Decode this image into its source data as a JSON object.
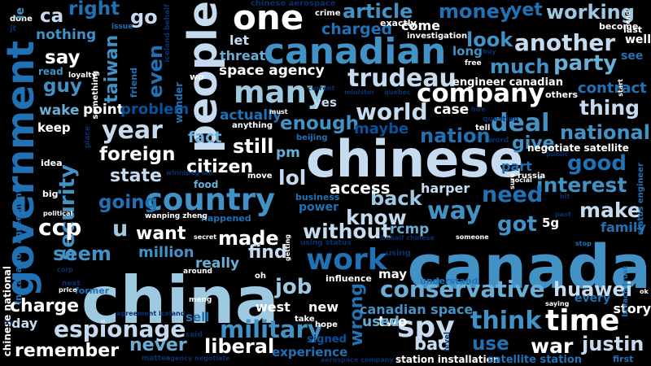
{
  "palette": {
    "background": "#000000",
    "white": "#ffffff",
    "pale": "#c6dbef",
    "light": "#9ecae1",
    "mid": "#6baed6",
    "blue": "#4292c6",
    "deep": "#2171b5",
    "dark": "#08519c",
    "navy": "#08306b"
  },
  "words": [
    {
      "text": "china",
      "color": "light"
    },
    {
      "text": "canada",
      "color": "blue"
    },
    {
      "text": "chinese",
      "color": "pale"
    },
    {
      "text": "canadian",
      "color": "blue"
    },
    {
      "text": "one",
      "color": "white"
    },
    {
      "text": "people",
      "color": "pale"
    },
    {
      "text": "government",
      "color": "deep"
    },
    {
      "text": "country",
      "color": "blue"
    },
    {
      "text": "many",
      "color": "light"
    },
    {
      "text": "time",
      "color": "white"
    },
    {
      "text": "trudeau",
      "color": "pale"
    },
    {
      "text": "company",
      "color": "white"
    },
    {
      "text": "year",
      "color": "pale"
    },
    {
      "text": "work",
      "color": "deep"
    },
    {
      "text": "huawei",
      "color": "pale"
    },
    {
      "text": "spy",
      "color": "pale"
    },
    {
      "text": "military",
      "color": "blue"
    },
    {
      "text": "espionage",
      "color": "pale"
    },
    {
      "text": "conservative",
      "color": "mid"
    },
    {
      "text": "think",
      "color": "blue"
    },
    {
      "text": "job",
      "color": "light"
    },
    {
      "text": "security",
      "color": "blue"
    },
    {
      "text": "another",
      "color": "pale"
    },
    {
      "text": "party",
      "color": "mid"
    },
    {
      "text": "world",
      "color": "pale"
    },
    {
      "text": "article",
      "color": "blue"
    },
    {
      "text": "money",
      "color": "deep"
    },
    {
      "text": "yet",
      "color": "deep"
    },
    {
      "text": "working",
      "color": "light"
    },
    {
      "text": "go",
      "color": "pale"
    },
    {
      "text": "right",
      "color": "deep"
    },
    {
      "text": "ca",
      "color": "pale"
    },
    {
      "text": "nothing",
      "color": "blue"
    },
    {
      "text": "say",
      "color": "white"
    },
    {
      "text": "guy",
      "color": "blue"
    },
    {
      "text": "taiwan",
      "color": "blue"
    },
    {
      "text": "even",
      "color": "deep"
    },
    {
      "text": "look",
      "color": "blue"
    },
    {
      "text": "much",
      "color": "blue"
    },
    {
      "text": "thing",
      "color": "pale"
    },
    {
      "text": "deal",
      "color": "blue"
    },
    {
      "text": "national",
      "color": "blue"
    },
    {
      "text": "give",
      "color": "blue"
    },
    {
      "text": "good",
      "color": "deep"
    },
    {
      "text": "interest",
      "color": "blue"
    },
    {
      "text": "need",
      "color": "deep"
    },
    {
      "text": "make",
      "color": "pale"
    },
    {
      "text": "way",
      "color": "blue"
    },
    {
      "text": "got",
      "color": "blue"
    },
    {
      "text": "know",
      "color": "pale"
    },
    {
      "text": "back",
      "color": "light"
    },
    {
      "text": "ccp",
      "color": "white"
    },
    {
      "text": "u",
      "color": "light"
    },
    {
      "text": "seem",
      "color": "blue"
    },
    {
      "text": "foreign",
      "color": "white"
    },
    {
      "text": "state",
      "color": "pale"
    },
    {
      "text": "going",
      "color": "deep"
    },
    {
      "text": "citizen",
      "color": "white"
    },
    {
      "text": "lol",
      "color": "pale"
    },
    {
      "text": "want",
      "color": "white"
    },
    {
      "text": "made",
      "color": "white"
    },
    {
      "text": "find",
      "color": "pale"
    },
    {
      "text": "without",
      "color": "pale"
    },
    {
      "text": "nation",
      "color": "deep"
    },
    {
      "text": "still",
      "color": "white"
    },
    {
      "text": "fact",
      "color": "mid"
    },
    {
      "text": "enough",
      "color": "blue"
    },
    {
      "text": "liberal",
      "color": "white"
    },
    {
      "text": "never",
      "color": "mid"
    },
    {
      "text": "remember",
      "color": "white"
    },
    {
      "text": "charge",
      "color": "white"
    },
    {
      "text": "wrong",
      "color": "deep"
    },
    {
      "text": "war",
      "color": "white"
    },
    {
      "text": "justin",
      "color": "pale"
    },
    {
      "text": "use",
      "color": "deep"
    },
    {
      "text": "bad",
      "color": "pale"
    },
    {
      "text": "charged",
      "color": "deep"
    },
    {
      "text": "come",
      "color": "white"
    },
    {
      "text": "space agency",
      "color": "white"
    },
    {
      "text": "let",
      "color": "pale"
    },
    {
      "text": "threat",
      "color": "mid"
    },
    {
      "text": "wake",
      "color": "mid"
    },
    {
      "text": "point",
      "color": "white"
    },
    {
      "text": "problem",
      "color": "dark"
    },
    {
      "text": "actually",
      "color": "deep"
    },
    {
      "text": "keep",
      "color": "white"
    },
    {
      "text": "maybe",
      "color": "dark"
    },
    {
      "text": "case",
      "color": "white"
    },
    {
      "text": "yes",
      "color": "pale"
    },
    {
      "text": "harper",
      "color": "pale"
    },
    {
      "text": "rcmp",
      "color": "mid"
    },
    {
      "text": "5g",
      "color": "white"
    },
    {
      "text": "access",
      "color": "white"
    },
    {
      "text": "pm",
      "color": "mid"
    },
    {
      "text": "power",
      "color": "deep"
    },
    {
      "text": "million",
      "color": "blue"
    },
    {
      "text": "really",
      "color": "mid"
    },
    {
      "text": "west",
      "color": "white"
    },
    {
      "text": "new",
      "color": "white"
    },
    {
      "text": "two",
      "color": "white"
    },
    {
      "text": "part",
      "color": "deep"
    },
    {
      "text": "family",
      "color": "deep"
    },
    {
      "text": "contract",
      "color": "deep"
    },
    {
      "text": "see",
      "color": "deep"
    },
    {
      "text": "well",
      "color": "white"
    },
    {
      "text": "may",
      "color": "white"
    },
    {
      "text": "story",
      "color": "white"
    },
    {
      "text": "every",
      "color": "deep"
    },
    {
      "text": "used",
      "color": "mid"
    },
    {
      "text": "day",
      "color": "pale"
    },
    {
      "text": "sell",
      "color": "deep"
    },
    {
      "text": "experience",
      "color": "deep"
    },
    {
      "text": "signed",
      "color": "dark"
    },
    {
      "text": "long",
      "color": "blue"
    },
    {
      "text": "engineer canadian",
      "color": "white"
    },
    {
      "text": "canadian space",
      "color": "blue"
    },
    {
      "text": "negotiate satellite",
      "color": "white"
    },
    {
      "text": "station installation",
      "color": "white"
    },
    {
      "text": "satellite station",
      "color": "deep"
    },
    {
      "text": "chinese national",
      "color": "white"
    },
    {
      "text": "installation agreement",
      "color": "deep"
    },
    {
      "text": "chinese aerospace",
      "color": "navy"
    },
    {
      "text": "done",
      "color": "white"
    },
    {
      "text": "ie",
      "color": "blue"
    },
    {
      "text": "jt",
      "color": "navy"
    },
    {
      "text": "read",
      "color": "blue"
    },
    {
      "text": "loyalty",
      "color": "white"
    },
    {
      "text": "something",
      "color": "white"
    },
    {
      "text": "issue",
      "color": "deep"
    },
    {
      "text": "friend",
      "color": "deep"
    },
    {
      "text": "iceland behalf",
      "color": "navy"
    },
    {
      "text": "wonder",
      "color": "deep"
    },
    {
      "text": "crime",
      "color": "white"
    },
    {
      "text": "exactly",
      "color": "white"
    },
    {
      "text": "investigation",
      "color": "white"
    },
    {
      "text": "free",
      "color": "white"
    },
    {
      "text": "buy",
      "color": "navy"
    },
    {
      "text": "end",
      "color": "white"
    },
    {
      "text": "become",
      "color": "white"
    },
    {
      "text": "last",
      "color": "white"
    },
    {
      "text": "others",
      "color": "white"
    },
    {
      "text": "start",
      "color": "white"
    },
    {
      "text": "current",
      "color": "navy"
    },
    {
      "text": "quebec",
      "color": "navy"
    },
    {
      "text": "minister",
      "color": "navy"
    },
    {
      "text": "must",
      "color": "white"
    },
    {
      "text": "hire",
      "color": "navy"
    },
    {
      "text": "question",
      "color": "navy"
    },
    {
      "text": "tell",
      "color": "white"
    },
    {
      "text": "word",
      "color": "navy"
    },
    {
      "text": "public",
      "color": "navy"
    },
    {
      "text": "status engineer",
      "color": "deep"
    },
    {
      "text": "social",
      "color": "white"
    },
    {
      "text": "sure",
      "color": "white"
    },
    {
      "text": "russia",
      "color": "white"
    },
    {
      "text": "hit",
      "color": "navy"
    },
    {
      "text": "past",
      "color": "navy"
    },
    {
      "text": "stop",
      "color": "deep"
    },
    {
      "text": "breach trust",
      "color": "deep"
    },
    {
      "text": "ok",
      "color": "white"
    },
    {
      "text": "saying",
      "color": "white"
    },
    {
      "text": "first",
      "color": "deep"
    },
    {
      "text": "winnipeg lab",
      "color": "navy"
    },
    {
      "text": "anything",
      "color": "white"
    },
    {
      "text": "beijing",
      "color": "deep"
    },
    {
      "text": "move",
      "color": "white"
    },
    {
      "text": "food",
      "color": "mid"
    },
    {
      "text": "business",
      "color": "deep"
    },
    {
      "text": "happened",
      "color": "deep"
    },
    {
      "text": "wanping zheng",
      "color": "white"
    },
    {
      "text": "secret",
      "color": "white"
    },
    {
      "text": "getting",
      "color": "white"
    },
    {
      "text": "using status",
      "color": "navy"
    },
    {
      "text": "behalf chinese",
      "color": "navy"
    },
    {
      "text": "someone",
      "color": "white"
    },
    {
      "text": "using",
      "color": "navy"
    },
    {
      "text": "around",
      "color": "white"
    },
    {
      "text": "oh",
      "color": "white"
    },
    {
      "text": "influence",
      "color": "white"
    },
    {
      "text": "understand",
      "color": "deep"
    },
    {
      "text": "former",
      "color": "deep"
    },
    {
      "text": "next",
      "color": "navy"
    },
    {
      "text": "price",
      "color": "white"
    },
    {
      "text": "meng",
      "color": "white"
    },
    {
      "text": "take",
      "color": "white"
    },
    {
      "text": "hope",
      "color": "white"
    },
    {
      "text": "level",
      "color": "navy"
    },
    {
      "text": "agreement iceland",
      "color": "navy"
    },
    {
      "text": "said",
      "color": "navy"
    },
    {
      "text": "matter",
      "color": "navy"
    },
    {
      "text": "agency negotiate",
      "color": "navy"
    },
    {
      "text": "aerospace company",
      "color": "navy"
    },
    {
      "text": "try",
      "color": "navy"
    },
    {
      "text": "place",
      "color": "navy"
    },
    {
      "text": "idea",
      "color": "white"
    },
    {
      "text": "big",
      "color": "white"
    },
    {
      "text": "political",
      "color": "white"
    },
    {
      "text": "corp",
      "color": "navy"
    },
    {
      "text": "wo",
      "color": "white"
    }
  ]
}
